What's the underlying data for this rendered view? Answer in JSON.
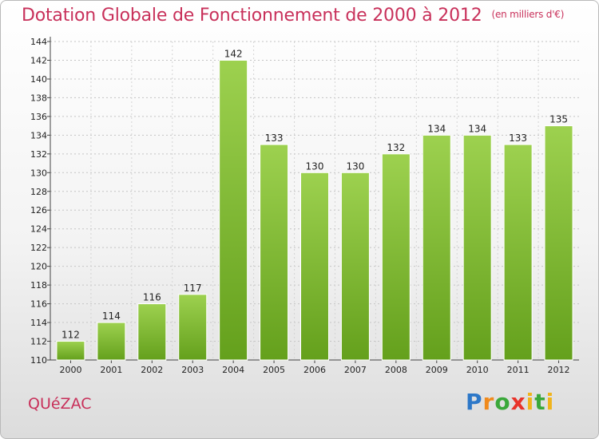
{
  "header": {
    "title": "Dotation Globale de Fonctionnement de 2000 à 2012",
    "unit": "(en milliers d'€)"
  },
  "footer": {
    "commune": "QUéZAC",
    "logo": [
      "P",
      "r",
      "o",
      "x",
      "i",
      "t",
      "i"
    ]
  },
  "colors": {
    "bar_light": "#9dd14f",
    "bar_dark": "#64a01c",
    "title": "#c8305a"
  },
  "chart_data": {
    "type": "bar",
    "title": "Dotation Globale de Fonctionnement de 2000 à 2012",
    "subtitle": "(en milliers d'€)",
    "categories": [
      "2000",
      "2001",
      "2002",
      "2003",
      "2004",
      "2005",
      "2006",
      "2007",
      "2008",
      "2009",
      "2010",
      "2011",
      "2012"
    ],
    "values": [
      112,
      114,
      116,
      117,
      142,
      133,
      130,
      130,
      132,
      134,
      134,
      133,
      135
    ],
    "ylim": [
      110,
      144
    ],
    "yticks": [
      110,
      112,
      114,
      116,
      118,
      120,
      122,
      124,
      126,
      128,
      130,
      132,
      134,
      136,
      138,
      140,
      142,
      144
    ],
    "grid": true,
    "legend": "none"
  }
}
